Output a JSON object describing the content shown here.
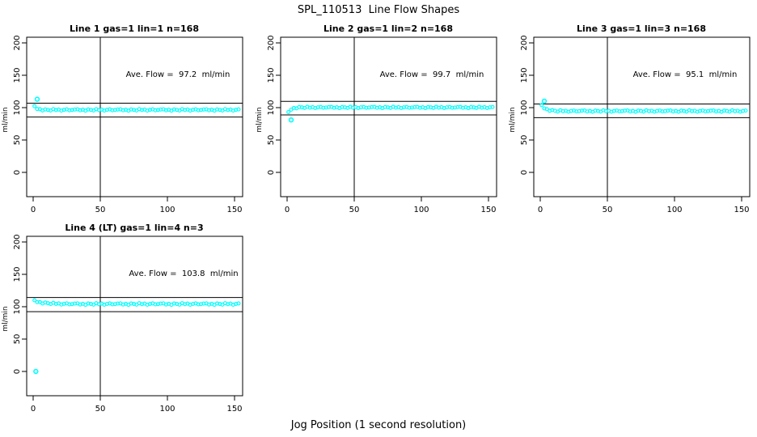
{
  "figure": {
    "title": "SPL_110513  Line Flow Shapes",
    "x_axis_label": "Jog Position (1 second resolution)",
    "point_color": "#00ffff",
    "line_color": "#000000",
    "background": "#ffffff"
  },
  "chart_data": [
    {
      "type": "scatter",
      "title": "Line 1 gas=1 lin=1 n=168",
      "annotation": "Ave. Flow =  97.2  ml/min",
      "avg_flow_ml_min": 97.2,
      "n": 168,
      "ylabel": "ml/min",
      "xlim": [
        0,
        150
      ],
      "ylim": [
        0,
        200
      ],
      "xticks": [
        0,
        50,
        100,
        150
      ],
      "yticks": [
        0,
        50,
        100,
        150,
        200
      ],
      "vline_x": 50,
      "hlines": [
        106.9,
        85.5
      ],
      "outliers": [
        [
          3,
          113
        ]
      ],
      "x_start": 1,
      "x_step": 2,
      "y": [
        102.4,
        97.9,
        97.6,
        95.7,
        97.2,
        96.6,
        95.7,
        97.7,
        96.2,
        97.0,
        95.5,
        96.7,
        97.3,
        96.0,
        96.4,
        97.1,
        97.4,
        95.9,
        96.8,
        95.4,
        97.2,
        96.6,
        95.7,
        97.7,
        96.2,
        97.0,
        95.5,
        96.7,
        97.3,
        96.0,
        96.4,
        97.1,
        97.4,
        95.9,
        96.8,
        95.4,
        97.2,
        96.6,
        95.7,
        97.7,
        96.2,
        97.0,
        95.5,
        96.7,
        97.3,
        96.0,
        96.4,
        97.1,
        97.4,
        95.9,
        96.8,
        95.4,
        97.2,
        96.6,
        95.7,
        97.7,
        96.2,
        97.0,
        95.5,
        96.7,
        97.3,
        96.0,
        96.4,
        97.1,
        97.4,
        95.9,
        96.8,
        95.4,
        97.2,
        96.6,
        95.7,
        97.7,
        96.2,
        97.0,
        95.5,
        96.7,
        97.3
      ]
    },
    {
      "type": "scatter",
      "title": "Line 2 gas=1 lin=2 n=168",
      "annotation": "Ave. Flow =  99.7  ml/min",
      "avg_flow_ml_min": 99.7,
      "n": 168,
      "ylabel": "ml/min",
      "xlim": [
        0,
        150
      ],
      "ylim": [
        0,
        200
      ],
      "xticks": [
        0,
        50,
        100,
        150
      ],
      "yticks": [
        0,
        50,
        100,
        150,
        200
      ],
      "vline_x": 50,
      "hlines": [
        109.7,
        88.7
      ],
      "outliers": [
        [
          3,
          81
        ]
      ],
      "x_start": 1,
      "x_step": 2,
      "y": [
        93.2,
        96.9,
        99.5,
        98.9,
        100.9,
        100.4,
        99.6,
        101.4,
        100.0,
        100.8,
        99.4,
        100.5,
        101.0,
        99.9,
        100.2,
        100.8,
        101.1,
        99.8,
        100.6,
        99.3,
        100.9,
        100.4,
        99.6,
        101.4,
        100.0,
        100.8,
        99.4,
        100.5,
        101.0,
        99.9,
        100.2,
        100.8,
        101.1,
        99.8,
        100.6,
        99.3,
        100.9,
        100.4,
        99.6,
        101.4,
        100.0,
        100.8,
        99.4,
        100.5,
        101.0,
        99.9,
        100.2,
        100.8,
        101.1,
        99.8,
        100.6,
        99.3,
        100.9,
        100.4,
        99.6,
        101.4,
        100.0,
        100.8,
        99.4,
        100.5,
        101.0,
        99.9,
        100.2,
        100.8,
        101.1,
        99.8,
        100.6,
        99.3,
        100.9,
        100.4,
        99.6,
        101.4,
        100.0,
        100.8,
        99.4,
        100.5,
        101.0
      ]
    },
    {
      "type": "scatter",
      "title": "Line 3 gas=1 lin=3 n=168",
      "annotation": "Ave. Flow =  95.1  ml/min",
      "avg_flow_ml_min": 95.1,
      "n": 168,
      "ylabel": "ml/min",
      "xlim": [
        0,
        150
      ],
      "ylim": [
        0,
        200
      ],
      "xticks": [
        0,
        50,
        100,
        150
      ],
      "yticks": [
        0,
        50,
        100,
        150,
        200
      ],
      "vline_x": 50,
      "hlines": [
        105.6,
        84.6
      ],
      "outliers": [
        [
          3,
          110
        ]
      ],
      "x_start": 1,
      "x_step": 2,
      "y": [
        103.9,
        98.8,
        97.6,
        95.1,
        96.2,
        95.2,
        93.9,
        96.0,
        94.4,
        95.2,
        93.7,
        94.9,
        95.5,
        94.2,
        94.6,
        95.3,
        95.6,
        94.1,
        95.0,
        93.6,
        95.4,
        94.8,
        93.9,
        95.9,
        94.4,
        95.2,
        93.7,
        94.9,
        95.5,
        94.2,
        94.6,
        95.3,
        95.6,
        94.1,
        95.0,
        93.6,
        95.4,
        94.8,
        93.9,
        95.9,
        94.4,
        95.2,
        93.7,
        94.9,
        95.5,
        94.2,
        94.6,
        95.3,
        95.6,
        94.1,
        95.0,
        93.6,
        95.4,
        94.8,
        93.9,
        95.9,
        94.4,
        95.2,
        93.7,
        94.9,
        95.5,
        94.2,
        94.6,
        95.3,
        95.6,
        94.1,
        95.0,
        93.6,
        95.4,
        94.8,
        93.9,
        95.9,
        94.4,
        95.2,
        93.7,
        94.9,
        95.5
      ]
    },
    {
      "type": "scatter",
      "title": "Line 4 (LT) gas=1 lin=4 n=3",
      "annotation": "Ave. Flow =  103.8  ml/min",
      "avg_flow_ml_min": 103.8,
      "n": 3,
      "ylabel": "ml/min",
      "xlim": [
        0,
        150
      ],
      "ylim": [
        0,
        200
      ],
      "xticks": [
        0,
        50,
        100,
        150
      ],
      "yticks": [
        0,
        50,
        100,
        150,
        200
      ],
      "vline_x": 50,
      "hlines": [
        114.2,
        92.4
      ],
      "outliers": [
        [
          2,
          0
        ]
      ],
      "x_start": 1,
      "x_step": 2,
      "y": [
        110.0,
        107.1,
        107.2,
        105.0,
        106.5,
        105.4,
        104.2,
        106.1,
        104.4,
        105.1,
        103.4,
        104.6,
        105.2,
        103.7,
        104.1,
        104.9,
        105.2,
        103.5,
        104.5,
        103.0,
        105.0,
        104.3,
        103.3,
        105.5,
        103.9,
        104.8,
        103.1,
        104.4,
        105.1,
        103.7,
        104.1,
        104.9,
        105.2,
        103.5,
        104.5,
        103.0,
        105.0,
        104.3,
        103.3,
        105.5,
        103.9,
        104.8,
        103.1,
        104.4,
        105.1,
        103.7,
        104.1,
        104.9,
        105.2,
        103.5,
        104.5,
        103.0,
        105.0,
        104.3,
        103.3,
        105.5,
        103.9,
        104.8,
        103.1,
        104.4,
        105.1,
        103.7,
        104.1,
        104.9,
        105.2,
        103.5,
        104.5,
        103.0,
        105.0,
        104.3,
        103.3,
        105.5,
        103.9,
        104.8,
        103.1,
        104.4,
        105.1
      ]
    }
  ]
}
